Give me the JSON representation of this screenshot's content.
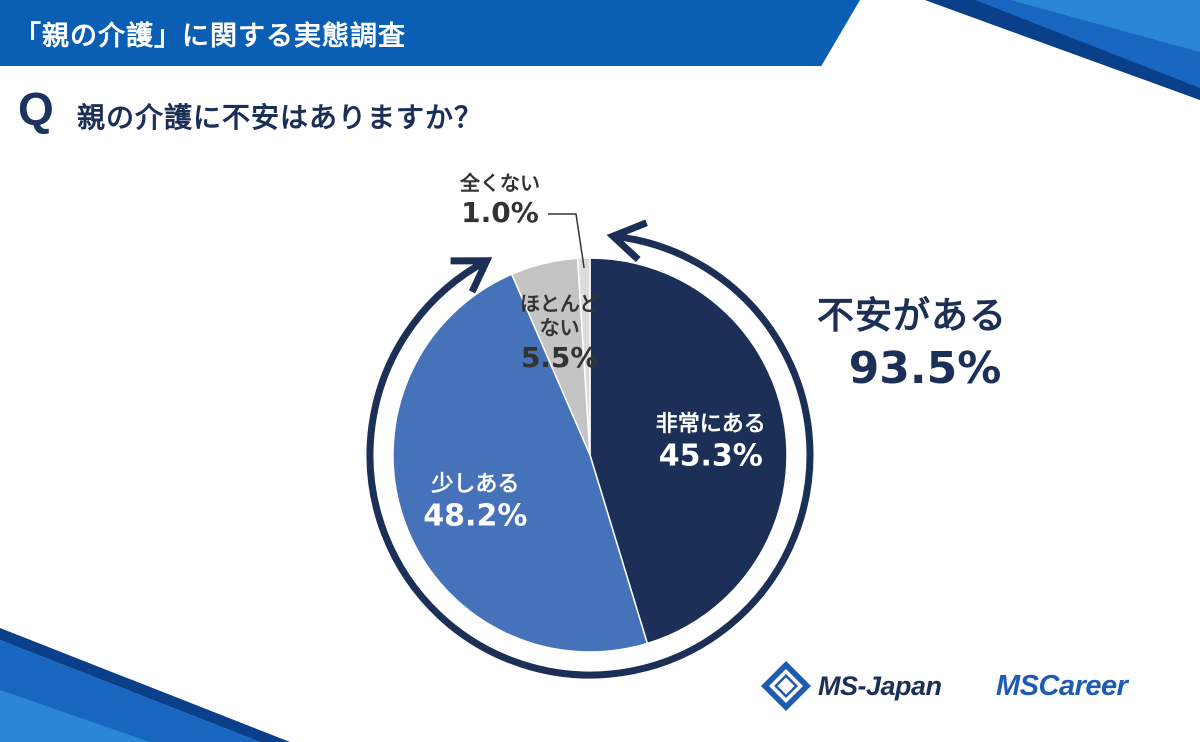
{
  "header": {
    "title": "「親の介護」に関する実態調査"
  },
  "question": {
    "mark": "Q",
    "text": "親の介護に不安はありますか？"
  },
  "summary": {
    "label": "不安がある",
    "value": "93.5%"
  },
  "chart_data": {
    "type": "pie",
    "slices": [
      {
        "label_lines": [
          "非常にある"
        ],
        "value": 45.3,
        "value_text": "45.3%",
        "color": "#1b2f57",
        "text_color": "#ffffff"
      },
      {
        "label_lines": [
          "少しある"
        ],
        "value": 48.2,
        "value_text": "48.2%",
        "color": "#4572b8",
        "text_color": "#ffffff"
      },
      {
        "label_lines": [
          "ほとんど",
          "ない"
        ],
        "value": 5.5,
        "value_text": "5.5%",
        "color": "#c4c4c4",
        "text_color": "#333333"
      },
      {
        "label_lines": [
          "全くない"
        ],
        "value": 1.0,
        "value_text": "1.0%",
        "color": "#dcdcdc",
        "text_color": "#333333"
      }
    ],
    "start_angle": "12 o'clock",
    "direction": "clockwise",
    "grouping": "非常にある + 少しある = 93.5%"
  },
  "logos": {
    "ms_japan": "MS-Japan",
    "ms_career": "MSCareer"
  },
  "colors": {
    "primary": "#1b2f57",
    "accent": "#0a5fb4",
    "secondary": "#4572b8"
  }
}
